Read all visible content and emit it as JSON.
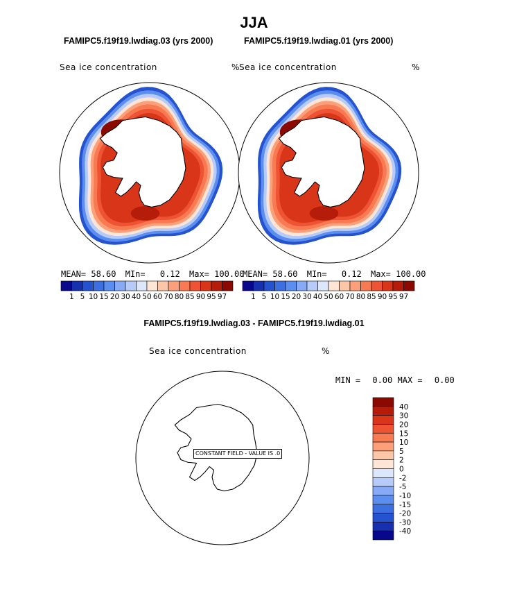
{
  "title": "JJA",
  "diff_title": "FAMIPC5.f19f19.lwdiag.03 - FAMIPC5.f19f19.lwdiag.01",
  "colors": {
    "blues": [
      "#08088c",
      "#1730b0",
      "#2553d0",
      "#3c6fe0",
      "#5c8ef0",
      "#86aaf6",
      "#b6cbf9",
      "#dce7fb"
    ],
    "reds": [
      "#fde6d6",
      "#fcc7a8",
      "#fba07a",
      "#f87a52",
      "#ee5333",
      "#d93518",
      "#b51d0a",
      "#8a0a00"
    ]
  },
  "chart_data": [
    {
      "type": "map",
      "projection": "south-polar-stereographic",
      "title": "FAMIPC5.f19f19.lwdiag.03 (yrs 2000)",
      "variable": "Sea ice concentration",
      "units": "%",
      "stats": {
        "mean_label": "MEAN=",
        "mean": "58.60",
        "min_label": "MIn=",
        "min": "0.12",
        "max_label": "Max=",
        "max": "100.00"
      },
      "colorbar_levels": [
        "1",
        "5",
        "10",
        "15",
        "20",
        "30",
        "40",
        "50",
        "60",
        "70",
        "80",
        "85",
        "90",
        "95",
        "97"
      ]
    },
    {
      "type": "map",
      "projection": "south-polar-stereographic",
      "title": "FAMIPC5.f19f19.lwdiag.01 (yrs 2000)",
      "variable": "Sea ice concentration",
      "units": "%",
      "stats": {
        "mean_label": "MEAN=",
        "mean": "58.60",
        "min_label": "MIn=",
        "min": "0.12",
        "max_label": "Max=",
        "max": "100.00"
      },
      "colorbar_levels": [
        "1",
        "5",
        "10",
        "15",
        "20",
        "30",
        "40",
        "50",
        "60",
        "70",
        "80",
        "85",
        "90",
        "95",
        "97"
      ]
    },
    {
      "type": "map",
      "projection": "south-polar-stereographic",
      "variable": "Sea ice concentration",
      "units": "%",
      "stats": {
        "min_label": "MIN =",
        "min": "0.00",
        "max_label": "MAX =",
        "max": "0.00"
      },
      "annotation": "CONSTANT FIELD - VALUE IS .0",
      "colorbar_levels": [
        "40",
        "30",
        "20",
        "15",
        "10",
        "5",
        "2",
        "0",
        "-2",
        "-5",
        "-10",
        "-15",
        "-20",
        "-30",
        "-40"
      ]
    }
  ]
}
